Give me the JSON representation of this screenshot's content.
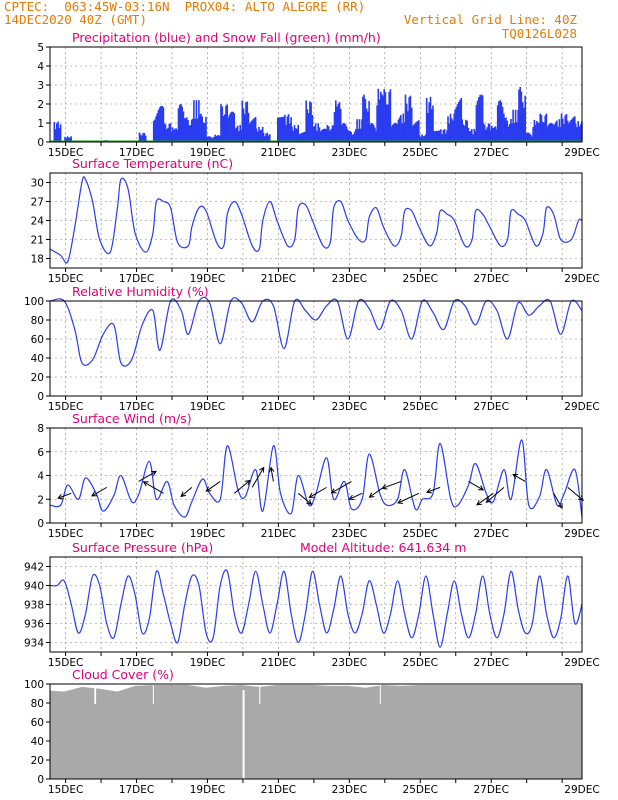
{
  "header": {
    "line1_left": "CPTEC:  063:45W-03:16N  PROX04: ALTO ALEGRE (RR)",
    "line2_left": "14DEC2020 40Z (GMT)",
    "line2_right": "Vertical Grid Line: 40Z",
    "line3_right": "TQ0126L028"
  },
  "colors": {
    "series": "#2a3cf0",
    "snow": "#14a014",
    "cloud": "#a9a9a9",
    "title": "#e0007a",
    "header": "#e87a00",
    "grid": "#888888"
  },
  "x_ticks": [
    "15DEC",
    "17DEC",
    "19DEC",
    "21DEC",
    "23DEC",
    "25DEC",
    "27DEC",
    "29DEC"
  ],
  "chart_data": [
    {
      "type": "bar",
      "title": "Precipitation (blue) and Snow Fall (green) (mm/h)",
      "xlabel": "",
      "ylabel": "",
      "ylim": [
        0,
        5
      ],
      "yticks": [
        0,
        1,
        2,
        3,
        4,
        5
      ],
      "x_days_span": [
        13.6,
        28.6
      ],
      "series": [
        {
          "name": "Precipitation",
          "x": [
            13.7,
            14.0,
            15.0,
            16.1,
            16.5,
            16.6,
            16.8,
            17.0,
            17.2,
            17.4,
            17.6,
            17.8,
            18.0,
            18.2,
            18.4,
            18.6,
            18.8,
            19.0,
            19.2,
            19.4,
            19.6,
            20.0,
            20.2,
            20.4,
            20.6,
            20.8,
            21.0,
            21.2,
            21.4,
            21.6,
            21.8,
            22.0,
            22.2,
            22.4,
            22.6,
            22.8,
            23.0,
            23.2,
            23.4,
            23.6,
            23.8,
            24.0,
            24.2,
            24.4,
            24.6,
            24.8,
            25.0,
            25.2,
            25.4,
            25.6,
            25.8,
            26.0,
            26.2,
            26.4,
            26.6,
            26.8,
            27.0,
            27.2,
            27.4,
            27.6,
            27.8,
            28.0,
            28.2,
            28.4
          ],
          "values": [
            1.1,
            0.3,
            0.1,
            0.5,
            1.4,
            1.9,
            1.0,
            0.8,
            2.0,
            1.3,
            2.2,
            1.5,
            0.3,
            0.4,
            2.0,
            1.6,
            0.9,
            2.2,
            1.4,
            0.8,
            0.5,
            2.3,
            1.5,
            0.9,
            0.6,
            2.2,
            1.0,
            0.7,
            0.9,
            2.3,
            1.0,
            0.6,
            1.2,
            2.5,
            1.0,
            2.9,
            2.8,
            1.0,
            1.5,
            2.5,
            1.2,
            0.4,
            2.4,
            1.0,
            0.7,
            1.5,
            2.6,
            1.2,
            0.7,
            2.5,
            1.0,
            0.9,
            2.2,
            1.3,
            1.7,
            2.9,
            0.5,
            1.2,
            1.5,
            1.0,
            1.2,
            1.5,
            1.4,
            1.1
          ]
        },
        {
          "name": "Snow Fall",
          "x": [
            13.6,
            28.6
          ],
          "values": [
            0,
            0
          ]
        }
      ]
    },
    {
      "type": "line",
      "title": "Surface Temperature (nC)",
      "xlabel": "",
      "ylabel": "",
      "ylim": [
        16.5,
        31.5
      ],
      "yticks": [
        18,
        21,
        24,
        27,
        30
      ],
      "series": [
        {
          "name": "",
          "x": [
            13.6,
            13.9,
            14.1,
            14.3,
            14.5,
            14.6,
            14.8,
            15.0,
            15.3,
            15.5,
            15.6,
            15.8,
            16.0,
            16.3,
            16.5,
            16.6,
            16.8,
            17.0,
            17.2,
            17.5,
            17.6,
            17.8,
            18.0,
            18.3,
            18.5,
            18.6,
            18.8,
            19.0,
            19.3,
            19.5,
            19.6,
            19.8,
            20.0,
            20.3,
            20.5,
            20.6,
            20.8,
            21.0,
            21.3,
            21.5,
            21.6,
            21.8,
            22.0,
            22.3,
            22.5,
            22.6,
            22.8,
            23.0,
            23.3,
            23.5,
            23.6,
            23.8,
            24.0,
            24.3,
            24.5,
            24.6,
            24.8,
            25.0,
            25.3,
            25.5,
            25.6,
            25.8,
            26.0,
            26.3,
            26.5,
            26.6,
            26.8,
            27.0,
            27.3,
            27.5,
            27.6,
            27.8,
            28.0,
            28.3,
            28.5,
            28.6
          ],
          "values": [
            19.5,
            18.5,
            17.5,
            23,
            30,
            30.5,
            27,
            21,
            19,
            26,
            30.5,
            29,
            22,
            19,
            22,
            27,
            27,
            26,
            20.5,
            20,
            23,
            26,
            25.5,
            20.5,
            20,
            25,
            27,
            25,
            20,
            19.5,
            24,
            27,
            24,
            20,
            21,
            26,
            26.5,
            24,
            20,
            20.5,
            26,
            27,
            24,
            21,
            21,
            24.5,
            26,
            23,
            20,
            21.5,
            25.5,
            25.5,
            23,
            20,
            22,
            25.5,
            25,
            24,
            20,
            21,
            25.5,
            25,
            23,
            20,
            21,
            25.5,
            25,
            24,
            20,
            22,
            26,
            25,
            21,
            21,
            24,
            24
          ]
        }
      ]
    },
    {
      "type": "line",
      "title": "Relative Humidity (%)",
      "xlabel": "",
      "ylabel": "",
      "ylim": [
        0,
        100
      ],
      "yticks": [
        0,
        20,
        40,
        60,
        80,
        100
      ],
      "series": [
        {
          "name": "",
          "x": [
            13.6,
            14.0,
            14.3,
            14.5,
            14.8,
            15.1,
            15.4,
            15.6,
            15.9,
            16.2,
            16.5,
            16.7,
            17.0,
            17.3,
            17.5,
            17.8,
            18.1,
            18.4,
            18.7,
            19.0,
            19.3,
            19.6,
            19.9,
            20.2,
            20.5,
            20.8,
            21.1,
            21.4,
            21.7,
            22.0,
            22.3,
            22.6,
            22.9,
            23.2,
            23.5,
            23.8,
            24.1,
            24.4,
            24.7,
            25.0,
            25.3,
            25.6,
            25.9,
            26.2,
            26.5,
            26.8,
            27.1,
            27.4,
            27.7,
            28.0,
            28.3,
            28.6
          ],
          "values": [
            100,
            100,
            70,
            35,
            38,
            65,
            75,
            35,
            38,
            75,
            90,
            48,
            100,
            90,
            65,
            100,
            98,
            55,
            100,
            98,
            78,
            100,
            95,
            50,
            100,
            90,
            80,
            95,
            100,
            60,
            100,
            92,
            70,
            100,
            90,
            60,
            100,
            88,
            70,
            100,
            95,
            75,
            100,
            90,
            60,
            98,
            85,
            95,
            100,
            65,
            100,
            90
          ]
        }
      ]
    },
    {
      "type": "line",
      "title": "Surface Wind (m/s)",
      "xlabel": "",
      "ylabel": "",
      "ylim": [
        0,
        8
      ],
      "yticks": [
        0,
        2,
        4,
        6,
        8
      ],
      "series": [
        {
          "name": "",
          "x": [
            13.6,
            13.9,
            14.1,
            14.4,
            14.6,
            14.9,
            15.1,
            15.4,
            15.6,
            15.9,
            16.1,
            16.4,
            16.6,
            16.9,
            17.1,
            17.4,
            17.6,
            17.9,
            18.1,
            18.4,
            18.6,
            18.9,
            19.1,
            19.4,
            19.6,
            19.9,
            20.1,
            20.4,
            20.6,
            20.9,
            21.1,
            21.4,
            21.6,
            21.9,
            22.1,
            22.4,
            22.6,
            22.9,
            23.1,
            23.4,
            23.6,
            23.9,
            24.1,
            24.4,
            24.6,
            24.9,
            25.1,
            25.4,
            25.6,
            25.9,
            26.1,
            26.4,
            26.6,
            26.9,
            27.1,
            27.4,
            27.6,
            27.9,
            28.1,
            28.4,
            28.6
          ],
          "values": [
            1.5,
            1.5,
            3.2,
            2.0,
            3.8,
            2.5,
            1.0,
            2.3,
            4.0,
            1.8,
            2.4,
            5.2,
            2.0,
            3.5,
            1.5,
            0.5,
            1.8,
            3.7,
            2.5,
            2.0,
            6.5,
            2.8,
            2.2,
            4.5,
            1.0,
            6.5,
            2.5,
            0.8,
            4.0,
            1.5,
            2.5,
            5.5,
            2.0,
            3.5,
            1.2,
            2.0,
            5.8,
            2.5,
            1.5,
            2.0,
            4.5,
            1.2,
            2.0,
            2.5,
            6.7,
            2.0,
            1.5,
            3.2,
            5.0,
            2.5,
            1.8,
            4.5,
            2.0,
            7.0,
            1.5,
            2.2,
            4.5,
            1.5,
            2.5,
            4.5,
            0.5
          ]
        }
      ],
      "arrows": [
        14.2,
        15.2,
        16.1,
        16.8,
        17.6,
        18.4,
        18.8,
        19.3,
        19.9,
        20.6,
        21.4,
        22.1,
        22.4,
        23.0,
        23.5,
        24.0,
        24.6,
        25.4,
        26.1,
        26.4,
        27.0,
        27.8,
        28.2
      ]
    },
    {
      "type": "line",
      "title": "Surface Pressure (hPa)",
      "annotation": "Model Altitude: 641.634 m",
      "xlabel": "",
      "ylabel": "",
      "ylim": [
        933,
        943
      ],
      "yticks": [
        934,
        936,
        938,
        940,
        942
      ],
      "series": [
        {
          "name": "",
          "x": [
            13.6,
            13.8,
            14.0,
            14.2,
            14.4,
            14.6,
            14.8,
            15.0,
            15.2,
            15.4,
            15.6,
            15.8,
            16.0,
            16.2,
            16.4,
            16.6,
            16.8,
            17.0,
            17.2,
            17.4,
            17.6,
            17.8,
            18.0,
            18.2,
            18.4,
            18.6,
            18.8,
            19.0,
            19.2,
            19.4,
            19.6,
            19.8,
            20.0,
            20.2,
            20.4,
            20.6,
            20.8,
            21.0,
            21.2,
            21.4,
            21.6,
            21.8,
            22.0,
            22.2,
            22.4,
            22.6,
            22.8,
            23.0,
            23.2,
            23.4,
            23.6,
            23.8,
            24.0,
            24.2,
            24.4,
            24.6,
            24.8,
            25.0,
            25.2,
            25.4,
            25.6,
            25.8,
            26.0,
            26.2,
            26.4,
            26.6,
            26.8,
            27.0,
            27.2,
            27.4,
            27.6,
            27.8,
            28.0,
            28.2,
            28.4,
            28.6
          ],
          "values": [
            940,
            940,
            940.5,
            938,
            935,
            937,
            941,
            940,
            936,
            934.5,
            938,
            941,
            939,
            935,
            936.5,
            941.5,
            939,
            936,
            934,
            938,
            941,
            940,
            935,
            934.5,
            940,
            941.5,
            937,
            935,
            938,
            941.5,
            938,
            935,
            938,
            941.5,
            937,
            934,
            937,
            941.5,
            938,
            935,
            937.5,
            941,
            937,
            935,
            937,
            940.5,
            938,
            935,
            937,
            940.5,
            937,
            934.5,
            937,
            941,
            937,
            933.5,
            937,
            940.5,
            937,
            934.5,
            937,
            941,
            937,
            934.5,
            937,
            941.5,
            937.5,
            935,
            936,
            941,
            937,
            934.5,
            936.5,
            941,
            936,
            938
          ]
        }
      ]
    },
    {
      "type": "area",
      "title": "Cloud Cover (%)",
      "xlabel": "",
      "ylabel": "",
      "ylim": [
        0,
        100
      ],
      "yticks": [
        0,
        20,
        40,
        60,
        80,
        100
      ],
      "series": [
        {
          "name": "",
          "x": [
            13.6,
            14.0,
            14.5,
            15.0,
            15.5,
            16.0,
            16.5,
            17.0,
            17.5,
            18.0,
            18.5,
            19.0,
            19.5,
            20.0,
            20.5,
            21.0,
            21.5,
            22.0,
            22.5,
            23.0,
            23.5,
            24.0,
            24.5,
            25.0,
            25.5,
            26.0,
            26.5,
            27.0,
            27.5,
            28.0,
            28.6
          ],
          "values": [
            93,
            92,
            97,
            95,
            92,
            98,
            99,
            99,
            99,
            96,
            98,
            99,
            97,
            99,
            99,
            99,
            98,
            98,
            96,
            99,
            98,
            99,
            99,
            99,
            99,
            99,
            99,
            99,
            99,
            99,
            99
          ]
        }
      ]
    }
  ]
}
